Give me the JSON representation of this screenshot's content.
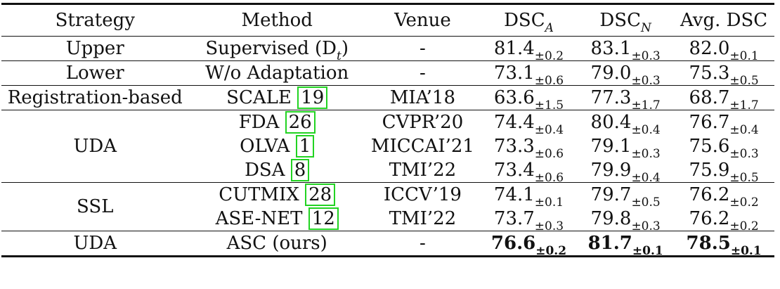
{
  "headers": [
    "Strategy",
    "Method",
    "Venue",
    "DSC",
    "DSC",
    "Avg. DSC"
  ],
  "header_subs": [
    "A",
    "N"
  ],
  "rows": [
    {
      "strategy": "Upper",
      "method": "Supervised (D",
      "method_sub": "t",
      "method_tail": ")",
      "venue": "-",
      "v": [
        [
          "81.4",
          "±0.2"
        ],
        [
          "83.1",
          "±0.3"
        ],
        [
          "82.0",
          "±0.1"
        ]
      ]
    },
    {
      "strategy": "Lower",
      "method": "W/o Adaptation",
      "venue": "-",
      "v": [
        [
          "73.1",
          "±0.6"
        ],
        [
          "79.0",
          "±0.3"
        ],
        [
          "75.3",
          "±0.5"
        ]
      ]
    },
    {
      "strategy": "Registration-based",
      "method": "SCALE ",
      "ref": "19",
      "venue": "MIA’18",
      "v": [
        [
          "63.6",
          "±1.5"
        ],
        [
          "77.3",
          "±1.7"
        ],
        [
          "68.7",
          "±1.7"
        ]
      ]
    },
    {
      "strategy": "UDA",
      "method": "FDA ",
      "ref": "26",
      "venue": "CVPR’20",
      "v": [
        [
          "74.4",
          "±0.4"
        ],
        [
          "80.4",
          "±0.4"
        ],
        [
          "76.7",
          "±0.4"
        ]
      ]
    },
    {
      "method": "OLVA ",
      "ref": "1",
      "venue": "MICCAI’21",
      "v": [
        [
          "73.3",
          "±0.6"
        ],
        [
          "79.1",
          "±0.3"
        ],
        [
          "75.6",
          "±0.3"
        ]
      ]
    },
    {
      "method": "DSA ",
      "ref": "8",
      "venue": "TMI’22",
      "v": [
        [
          "73.4",
          "±0.6"
        ],
        [
          "79.9",
          "±0.4"
        ],
        [
          "75.9",
          "±0.5"
        ]
      ]
    },
    {
      "strategy": "SSL",
      "method": "CUTMIX ",
      "ref": "28",
      "venue": "ICCV’19",
      "v": [
        [
          "74.1",
          "±0.1"
        ],
        [
          "79.7",
          "±0.5"
        ],
        [
          "76.2",
          "±0.2"
        ]
      ]
    },
    {
      "method": "ASE-NET ",
      "ref": "12",
      "venue": "TMI’22",
      "v": [
        [
          "73.7",
          "±0.3"
        ],
        [
          "79.8",
          "±0.3"
        ],
        [
          "76.2",
          "±0.2"
        ]
      ]
    },
    {
      "strategy": "UDA",
      "method": "ASC (ours)",
      "venue": "-",
      "v": [
        [
          "76.6",
          "±0.2"
        ],
        [
          "81.7",
          "±0.1"
        ],
        [
          "78.5",
          "±0.1"
        ]
      ]
    }
  ]
}
